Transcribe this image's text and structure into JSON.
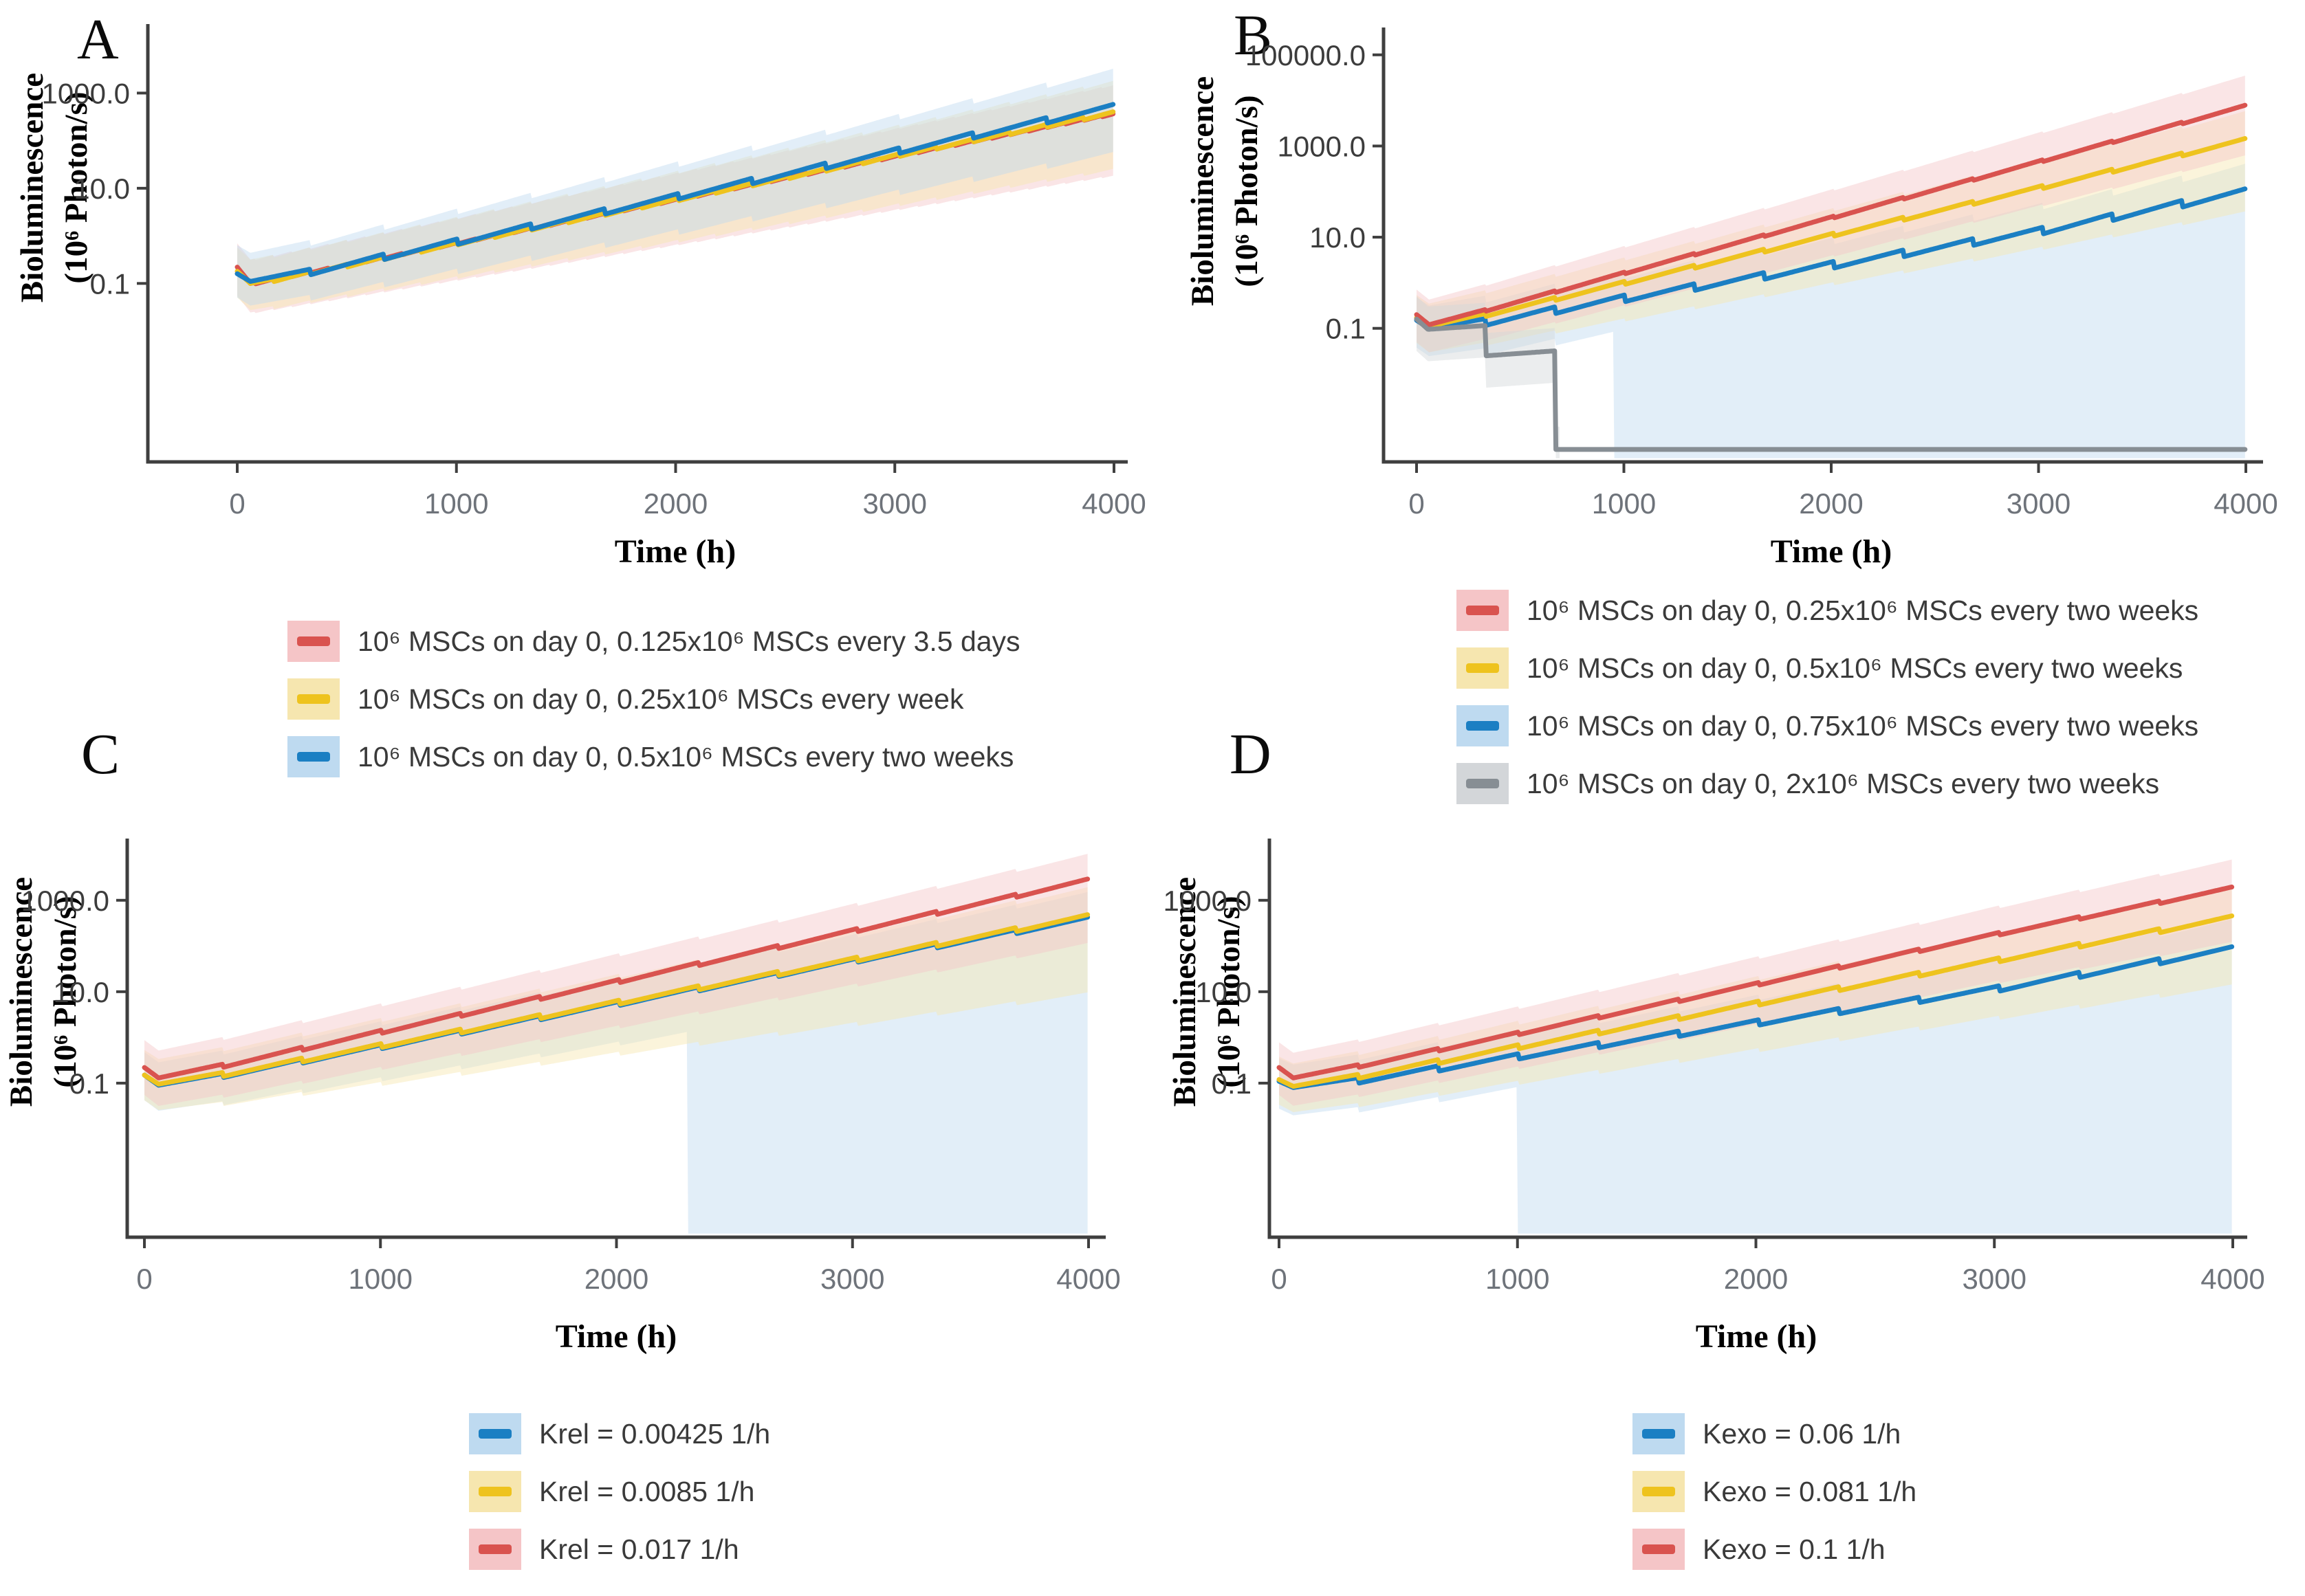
{
  "colors": {
    "red": {
      "line": "#d9534f",
      "band": "#f5c5c7"
    },
    "yellow": {
      "line": "#eec31e",
      "band": "#f6e6af"
    },
    "blue": {
      "line": "#1b7fc3",
      "band": "#bedaf0"
    },
    "gray": {
      "line": "#878e94",
      "band": "#d3d6d9"
    }
  },
  "chart_data": [
    {
      "id": "A",
      "label": "A",
      "type": "line",
      "xlabel": "Time (h)",
      "ylabel": [
        "Bioluminescence",
        "(10⁶ Photon/s)"
      ],
      "xlim": [
        0,
        4000
      ],
      "x_ticks": [
        0,
        1000,
        2000,
        3000,
        4000
      ],
      "y_ticks": [
        [
          1000,
          "1000.0"
        ],
        [
          10,
          "10.0"
        ],
        [
          0.1,
          "0.1"
        ]
      ],
      "log_scale_y": true,
      "legend_order": [
        0,
        1,
        2
      ],
      "series": [
        {
          "name": "10⁶ MSCs on day 0, 0.125x10⁶ MSCs every 3.5 days",
          "color_key": "red",
          "dose_interval_h": 84,
          "tooth_depth_decades": 0.03,
          "points": [
            [
              0,
              0.22
            ],
            [
              60,
              0.1
            ],
            [
              1000,
              0.72
            ],
            [
              2000,
              5.9
            ],
            [
              3000,
              48
            ],
            [
              4000,
              380
            ]
          ],
          "band": {
            "up": [
              0.5,
              0.6
            ],
            "lo": [
              0.6,
              1.3
            ]
          }
        },
        {
          "name": "10⁶ MSCs on day 0, 0.25x10⁶ MSCs every week",
          "color_key": "yellow",
          "dose_interval_h": 168,
          "tooth_depth_decades": 0.06,
          "points": [
            [
              0,
              0.18
            ],
            [
              60,
              0.1
            ],
            [
              1000,
              0.73
            ],
            [
              2000,
              6.1
            ],
            [
              3000,
              51
            ],
            [
              4000,
              420
            ]
          ],
          "band": {
            "up": [
              0.5,
              0.65
            ],
            "lo": [
              0.55,
              1.2
            ]
          }
        },
        {
          "name": "10⁶ MSCs on day 0, 0.5x10⁶ MSCs every two weeks",
          "color_key": "blue",
          "dose_interval_h": 336,
          "tooth_depth_decades": 0.12,
          "points": [
            [
              0,
              0.16
            ],
            [
              60,
              0.11
            ],
            [
              1000,
              0.86
            ],
            [
              2000,
              7.6
            ],
            [
              3000,
              68
            ],
            [
              4000,
              600
            ]
          ],
          "band": {
            "up": [
              0.6,
              0.75
            ],
            "lo": [
              0.5,
              1.0
            ]
          }
        }
      ]
    },
    {
      "id": "B",
      "label": "B",
      "type": "line",
      "xlabel": "Time (h)",
      "ylabel": [
        "Bioluminescence",
        "(10⁶ Photon/s)"
      ],
      "xlim": [
        0,
        4000
      ],
      "x_ticks": [
        0,
        1000,
        2000,
        3000,
        4000
      ],
      "y_ticks": [
        [
          100000,
          "100000.0"
        ],
        [
          1000,
          "1000.0"
        ],
        [
          10,
          "10.0"
        ],
        [
          0.1,
          "0.1"
        ]
      ],
      "log_scale_y": true,
      "legend_order": [
        2,
        1,
        0,
        3
      ],
      "series": [
        {
          "name": "10⁶ MSCs on day 0, 0.75x10⁶ MSCs every two weeks",
          "color_key": "blue",
          "dose_interval_h": 336,
          "tooth_depth_decades": 0.15,
          "points": [
            [
              0,
              0.15
            ],
            [
              60,
              0.1
            ],
            [
              1000,
              0.54
            ],
            [
              2000,
              2.9
            ],
            [
              3000,
              16
            ],
            [
              4000,
              120
            ]
          ],
          "band": {
            "up": [
              0.5,
              0.55
            ],
            "lo": [
              0.6,
              1.2
            ],
            "floor_from": 950
          }
        },
        {
          "name": "10⁶ MSCs on day 0, 0.5x10⁶ MSCs every two weeks",
          "color_key": "yellow",
          "dose_interval_h": 336,
          "tooth_depth_decades": 0.07,
          "points": [
            [
              0,
              0.17
            ],
            [
              60,
              0.11
            ],
            [
              1000,
              1.07
            ],
            [
              2000,
              12
            ],
            [
              3000,
              130
            ],
            [
              4000,
              1500
            ]
          ],
          "band": {
            "up": [
              0.5,
              0.6
            ],
            "lo": [
              0.55,
              1.6
            ]
          }
        },
        {
          "name": "10⁶ MSCs on day 0, 0.25x10⁶ MSCs every two weeks",
          "color_key": "red",
          "dose_interval_h": 336,
          "tooth_depth_decades": 0.04,
          "points": [
            [
              0,
              0.2
            ],
            [
              60,
              0.12
            ],
            [
              1000,
              1.7
            ],
            [
              2000,
              28
            ],
            [
              3000,
              470
            ],
            [
              4000,
              8000
            ]
          ],
          "band": {
            "up": [
              0.55,
              0.65
            ],
            "lo": [
              0.6,
              1.1
            ]
          }
        },
        {
          "name": "10⁶ MSCs on day 0, 2x10⁶ MSCs every two weeks",
          "color_key": "gray",
          "dose_interval_h": 336,
          "tooth_depth_decades": 0,
          "points": [
            [
              0,
              0.16
            ],
            [
              55,
              0.095
            ],
            [
              330,
              0.115
            ],
            [
              336,
              0.025
            ],
            [
              666,
              0.032
            ],
            [
              672,
              0.00022
            ],
            [
              4000,
              0.00022
            ]
          ],
          "band": {
            "up": [
              0.5,
              0.5
            ],
            "lo": [
              0.7,
              0.7
            ],
            "band_end": 690
          }
        }
      ]
    },
    {
      "id": "C",
      "label": "C",
      "type": "line",
      "xlabel": "Time (h)",
      "ylabel": [
        "Bioluminescence",
        "(10⁶ Photon/s)"
      ],
      "xlim": [
        0,
        4000
      ],
      "x_ticks": [
        0,
        1000,
        2000,
        3000,
        4000
      ],
      "y_ticks": [
        [
          1000,
          "1000.0"
        ],
        [
          10,
          "10.0"
        ],
        [
          0.1,
          "0.1"
        ]
      ],
      "log_scale_y": true,
      "legend_order": [
        0,
        1,
        2
      ],
      "series": [
        {
          "name": "Krel = 0.00425 1/h",
          "color_key": "blue",
          "dose_interval_h": 336,
          "tooth_depth_decades": 0.09,
          "points": [
            [
              0,
              0.15
            ],
            [
              60,
              0.09
            ],
            [
              1000,
              0.69
            ],
            [
              2000,
              6.0
            ],
            [
              3000,
              52
            ],
            [
              4000,
              440
            ]
          ],
          "band": {
            "up": [
              0.5,
              0.55
            ],
            "lo": [
              0.55,
              1.2
            ],
            "floor_from": 2300
          }
        },
        {
          "name": "Krel = 0.0085 1/h",
          "color_key": "yellow",
          "dose_interval_h": 336,
          "tooth_depth_decades": 0.09,
          "points": [
            [
              0,
              0.15
            ],
            [
              60,
              0.095
            ],
            [
              1000,
              0.73
            ],
            [
              2000,
              6.4
            ],
            [
              3000,
              55
            ],
            [
              4000,
              500
            ]
          ],
          "band": {
            "up": [
              0.55,
              0.6
            ],
            "lo": [
              0.55,
              1.7
            ]
          }
        },
        {
          "name": "Krel = 0.017 1/h",
          "color_key": "red",
          "dose_interval_h": 336,
          "tooth_depth_decades": 0.07,
          "points": [
            [
              0,
              0.22
            ],
            [
              60,
              0.13
            ],
            [
              1000,
              1.43
            ],
            [
              2000,
              18
            ],
            [
              3000,
              230
            ],
            [
              4000,
              3000
            ]
          ],
          "band": {
            "up": [
              0.6,
              0.55
            ],
            "lo": [
              0.6,
              1.4
            ]
          }
        }
      ]
    },
    {
      "id": "D",
      "label": "D",
      "type": "line",
      "xlabel": "Time (h)",
      "ylabel": [
        "Bioluminescence",
        "(10⁶ Photon/s)"
      ],
      "xlim": [
        0,
        4000
      ],
      "x_ticks": [
        0,
        1000,
        2000,
        3000,
        4000
      ],
      "y_ticks": [
        [
          1000,
          "1000.0"
        ],
        [
          10,
          "10.0"
        ],
        [
          0.1,
          "0.1"
        ]
      ],
      "log_scale_y": true,
      "legend_order": [
        0,
        1,
        2
      ],
      "series": [
        {
          "name": "Kexo = 0.06 1/h",
          "color_key": "blue",
          "dose_interval_h": 336,
          "tooth_depth_decades": 0.12,
          "points": [
            [
              0,
              0.11
            ],
            [
              60,
              0.08
            ],
            [
              1000,
              0.44
            ],
            [
              2000,
              2.4
            ],
            [
              3000,
              13
            ],
            [
              4000,
              100
            ]
          ],
          "band": {
            "up": [
              0.5,
              0.6
            ],
            "lo": [
              0.6,
              1.1
            ],
            "floor_from": 1000
          }
        },
        {
          "name": "Kexo = 0.081 1/h",
          "color_key": "yellow",
          "dose_interval_h": 336,
          "tooth_depth_decades": 0.09,
          "points": [
            [
              0,
              0.12
            ],
            [
              60,
              0.085
            ],
            [
              1000,
              0.69
            ],
            [
              2000,
              6.1
            ],
            [
              3000,
              53
            ],
            [
              4000,
              470
            ]
          ],
          "band": {
            "up": [
              0.5,
              0.6
            ],
            "lo": [
              0.55,
              1.5
            ]
          }
        },
        {
          "name": "Kexo = 0.1 1/h",
          "color_key": "red",
          "dose_interval_h": 336,
          "tooth_depth_decades": 0.06,
          "points": [
            [
              0,
              0.22
            ],
            [
              60,
              0.13
            ],
            [
              1000,
              1.3
            ],
            [
              2000,
              15.5
            ],
            [
              3000,
              190
            ],
            [
              4000,
              2000
            ]
          ],
          "band": {
            "up": [
              0.55,
              0.6
            ],
            "lo": [
              0.6,
              1.2
            ]
          }
        }
      ]
    }
  ]
}
